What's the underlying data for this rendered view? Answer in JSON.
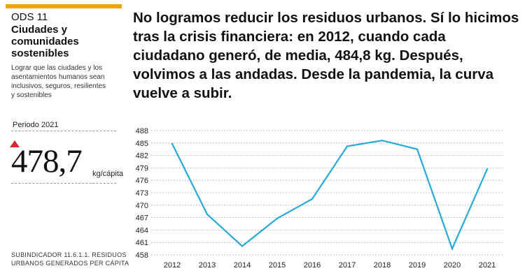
{
  "colors": {
    "accent": "#f0a500",
    "line": "#27a9d9",
    "triangle": "#d9272e",
    "grid": "#999999"
  },
  "panel": {
    "ods_number": "ODS 11",
    "ods_title": "Ciudades y comunidades sostenibles",
    "ods_description": "Lograr que las ciudades y los asentamientos humanos sean inclusivos, seguros, resilientes y sostenibles",
    "period": "Periodo 2021",
    "value": "478,7",
    "unit": "kg/cápita",
    "subindicator": "SUBINDICADOR 11.6.1.1. RESIDUOS URBANOS GENERADOS PER CÁPITA"
  },
  "headline": "No logramos reducir los residuos urbanos. Sí lo hicimos tras la crisis financiera: en 2012, cuando cada ciudadano generó, de media, 484,8 kg. Después, volvimos a las andadas. Desde la pandemia, la curva vuelve a subir.",
  "chart_data": {
    "type": "line",
    "title": "",
    "xlabel": "",
    "ylabel": "",
    "categories": [
      "2012",
      "2013",
      "2014",
      "2015",
      "2016",
      "2017",
      "2018",
      "2019",
      "2020",
      "2021"
    ],
    "series": [
      {
        "name": "Residuos urbanos per cápita (kg)",
        "values": [
          484.8,
          467.8,
          460.1,
          466.8,
          471.5,
          484.2,
          485.6,
          483.5,
          459.5,
          478.7
        ]
      }
    ],
    "yticks": [
      458,
      461,
      464,
      467,
      470,
      473,
      476,
      479,
      482,
      485,
      488
    ],
    "ytick_labels": [
      "458",
      "461",
      "464",
      "467",
      "470",
      "473",
      "476",
      "479",
      "482",
      "485",
      "488"
    ],
    "ylim": [
      458,
      488
    ],
    "grid": true
  }
}
